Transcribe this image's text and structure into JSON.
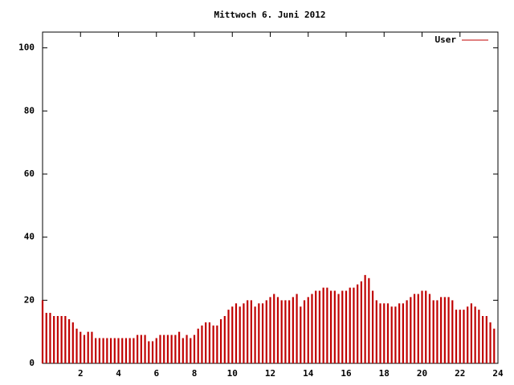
{
  "chart_data": {
    "type": "impulse",
    "title": "Mittwoch 6. Juni 2012",
    "series": [
      {
        "name": "User",
        "color": "#c00000",
        "x": [
          0,
          0.2,
          0.4,
          0.6,
          0.8,
          1,
          1.2,
          1.4,
          1.6,
          1.8,
          2,
          2.2,
          2.4,
          2.6,
          2.8,
          3,
          3.2,
          3.4,
          3.6,
          3.8,
          4,
          4.2,
          4.4,
          4.6,
          4.8,
          5,
          5.2,
          5.4,
          5.6,
          5.8,
          6,
          6.2,
          6.4,
          6.6,
          6.8,
          7,
          7.2,
          7.4,
          7.6,
          7.8,
          8,
          8.2,
          8.4,
          8.6,
          8.8,
          9,
          9.2,
          9.4,
          9.6,
          9.8,
          10,
          10.2,
          10.4,
          10.6,
          10.8,
          11,
          11.2,
          11.4,
          11.6,
          11.8,
          12,
          12.2,
          12.4,
          12.6,
          12.8,
          13,
          13.2,
          13.4,
          13.6,
          13.8,
          14,
          14.2,
          14.4,
          14.6,
          14.8,
          15,
          15.2,
          15.4,
          15.6,
          15.8,
          16,
          16.2,
          16.4,
          16.6,
          16.8,
          17,
          17.2,
          17.4,
          17.6,
          17.8,
          18,
          18.2,
          18.4,
          18.6,
          18.8,
          19,
          19.2,
          19.4,
          19.6,
          19.8,
          20,
          20.2,
          20.4,
          20.6,
          20.8,
          21,
          21.2,
          21.4,
          21.6,
          21.8,
          22,
          22.2,
          22.4,
          22.6,
          22.8,
          23,
          23.2,
          23.4,
          23.6,
          23.8
        ],
        "values": [
          20,
          16,
          16,
          15,
          15,
          15,
          15,
          14,
          13,
          11,
          10,
          9,
          10,
          10,
          8,
          8,
          8,
          8,
          8,
          8,
          8,
          8,
          8,
          8,
          8,
          9,
          9,
          9,
          7,
          7,
          8,
          9,
          9,
          9,
          9,
          9,
          10,
          8,
          9,
          8,
          9,
          11,
          12,
          13,
          13,
          12,
          12,
          14,
          15,
          17,
          18,
          19,
          18,
          19,
          20,
          20,
          18,
          19,
          19,
          20,
          21,
          22,
          21,
          20,
          20,
          20,
          21,
          22,
          18,
          20,
          21,
          22,
          23,
          23,
          24,
          24,
          23,
          23,
          22,
          23,
          23,
          24,
          24,
          25,
          26,
          28,
          27,
          23,
          20,
          19,
          19,
          19,
          18,
          18,
          19,
          19,
          20,
          21,
          22,
          22,
          23,
          23,
          22,
          20,
          20,
          21,
          21,
          21,
          20,
          17,
          17,
          17,
          18,
          19,
          18,
          17,
          15,
          15,
          13,
          11
        ]
      }
    ],
    "xlim": [
      0,
      24
    ],
    "xticks": [
      2,
      4,
      6,
      8,
      10,
      12,
      14,
      16,
      18,
      20,
      22,
      24
    ],
    "ylim": [
      0,
      105
    ],
    "yticks": [
      0,
      20,
      40,
      60,
      80,
      100
    ],
    "legend": "top-right"
  }
}
